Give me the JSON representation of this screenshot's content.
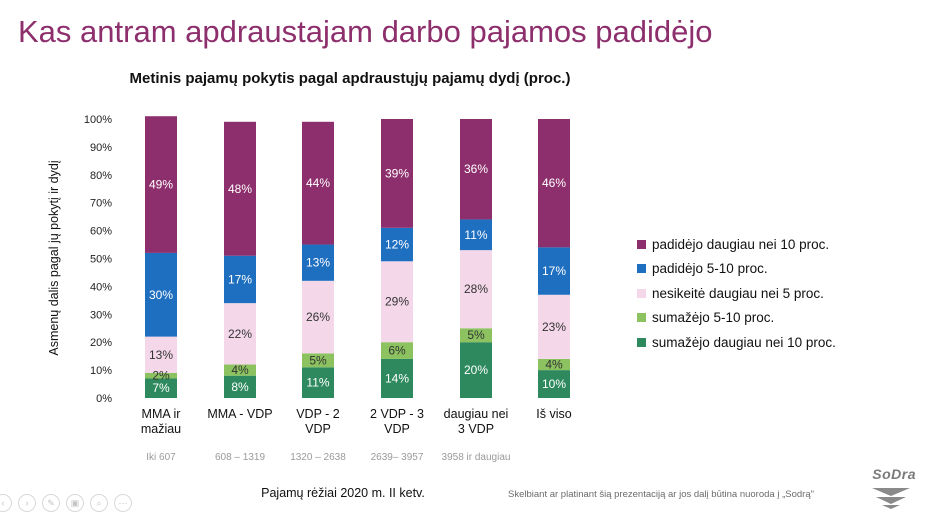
{
  "slide": {
    "title": "Kas antram apdraustajam darbo pajamos padidėjo",
    "footer_note": "Skelbiant ar platinant šią prezentaciją ar jos dalį būtina nuoroda į „Sodrą\"",
    "logo_text": "SoDra"
  },
  "nav": {
    "icons": [
      "previous-icon",
      "next-icon",
      "pen-icon",
      "slides-icon",
      "zoom-icon",
      "more-icon"
    ],
    "glyphs": [
      "‹",
      "›",
      "✎",
      "▣",
      "⌕",
      "⋯"
    ]
  },
  "chart_data": {
    "type": "bar",
    "stacked": true,
    "title": "Metinis pajamų pokytis pagal apdraustųjų pajamų dydį (proc.)",
    "xlabel": "Pajamų rėžiai 2020 m. II ketv.",
    "ylabel": "Asmenų dalis pagal jų pokytį ir dydį",
    "ylim": [
      0,
      100
    ],
    "yticks": [
      "0%",
      "10%",
      "20%",
      "30%",
      "40%",
      "50%",
      "60%",
      "70%",
      "80%",
      "90%",
      "100%"
    ],
    "categories": [
      [
        "MMA ir",
        "mažiau"
      ],
      [
        "MMA - VDP"
      ],
      [
        "VDP - 2",
        "VDP"
      ],
      [
        "2 VDP - 3",
        "VDP"
      ],
      [
        "daugiau nei",
        "3 VDP"
      ],
      [
        "Iš viso"
      ]
    ],
    "sublabels": [
      "Iki 607",
      "608 – 1319",
      "1320 – 2638",
      "2639– 3957",
      "3958 ir daugiau",
      ""
    ],
    "legend_position": "right",
    "series": [
      {
        "name": "sumažėjo daugiau nei 10 proc.",
        "color": "#2e8a5e",
        "values": [
          7,
          8,
          11,
          14,
          20,
          10
        ],
        "labels": [
          "7%",
          "8%",
          "11%",
          "14%",
          "20%",
          "10%"
        ]
      },
      {
        "name": "sumažėjo 5-10 proc.",
        "color": "#8cc360",
        "values": [
          2,
          4,
          5,
          6,
          5,
          4
        ],
        "labels": [
          "2%",
          "4%",
          "5%",
          "6%",
          "5%",
          "4%"
        ]
      },
      {
        "name": "nesikeitė daugiau nei 5 proc.",
        "color": "#f4d8ea",
        "values": [
          13,
          22,
          26,
          29,
          28,
          23
        ],
        "labels": [
          "13%",
          "22%",
          "26%",
          "29%",
          "28%",
          "23%"
        ]
      },
      {
        "name": "padidėjo 5-10 proc.",
        "color": "#1f6fc1",
        "values": [
          30,
          17,
          13,
          12,
          11,
          17
        ],
        "labels": [
          "30%",
          "17%",
          "13%",
          "12%",
          "11%",
          "17%"
        ]
      },
      {
        "name": "padidėjo daugiau nei 10 proc.",
        "color": "#8e2f6d",
        "values": [
          49,
          48,
          44,
          39,
          36,
          46
        ],
        "labels": [
          "49%",
          "48%",
          "44%",
          "39%",
          "36%",
          "46%"
        ]
      }
    ]
  }
}
